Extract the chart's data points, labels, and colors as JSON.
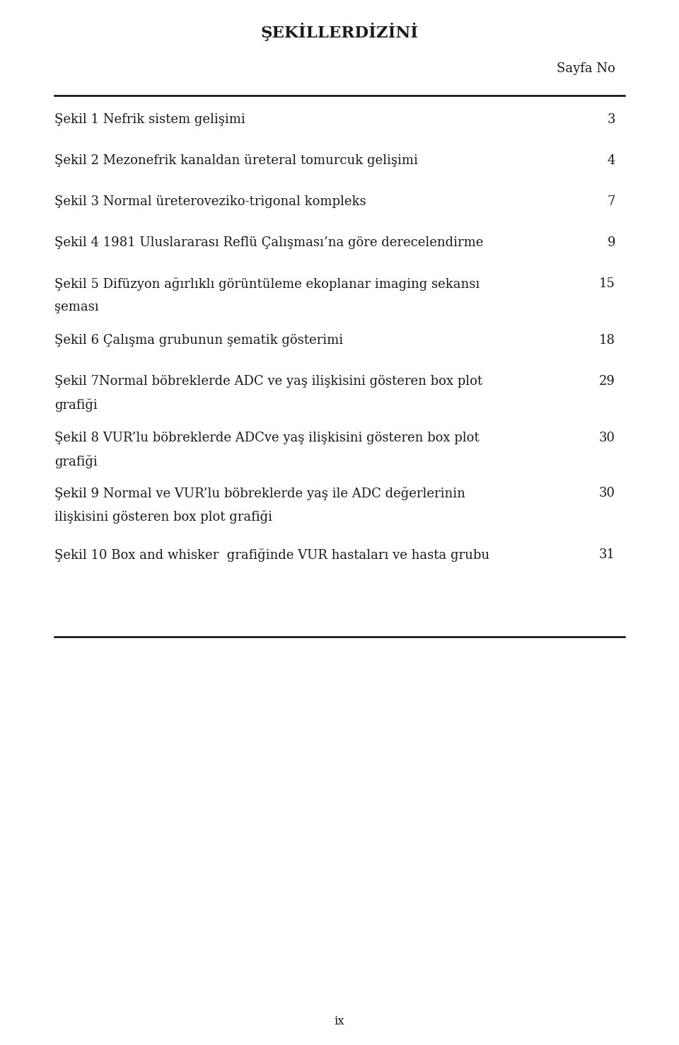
{
  "title": "ŞEKİLLERDİZİNİ",
  "header_right": "Sayfa No",
  "background_color": "#ffffff",
  "text_color": "#1a1a1a",
  "entries": [
    {
      "label": "Şekil 1 Nefrik sistem gelişimi",
      "page": "3",
      "multiline": false
    },
    {
      "label": "Şekil 2 Mezonefrik kanaldan üreteral tomurcuk gelişimi",
      "page": "4",
      "multiline": false
    },
    {
      "label": "Şekil 3 Normal üreteroveziko-trigonal kompleks",
      "page": "7",
      "multiline": false
    },
    {
      "label": "Şekil 4 1981 Uluslararası Reflü Çalışması’na göre derecelendirme",
      "page": "9",
      "multiline": false
    },
    {
      "label": "Şekil 5 Difüzyon ağırlıklı görüntüleme ekoplanar imaging sekansı",
      "page": "15",
      "multiline": true,
      "line1": "Şekil 5 Difüzyon ağırlıklı görüntüleme ekoplanar imaging sekansı",
      "line2": "şeması"
    },
    {
      "label": "Şekil 6 Çalışma grubunun şematik gösterimi",
      "page": "18",
      "multiline": false
    },
    {
      "label": "Şekil 7Normal böbreklerde ADC ve yaş ilişkisini gösteren box plot",
      "page": "29",
      "multiline": true,
      "line1": "Şekil 7Normal böbreklerde ADC ve yaş ilişkisini gösteren box plot",
      "line2": "grafiği"
    },
    {
      "label": "Şekil 8 VUR’lu böbreklerde ADCve yaş ilişkisini gösteren box plot",
      "page": "30",
      "multiline": true,
      "line1": "Şekil 8 VUR’lu böbreklerde ADCve yaş ilişkisini gösteren box plot",
      "line2": "grafiği"
    },
    {
      "label": "Şekil 9 Normal ve VUR’lu böbreklerde yaş ile ADC değerlerinin",
      "page": "30",
      "multiline": true,
      "line1": "Şekil 9 Normal ve VUR’lu böbreklerde yaş ile ADC değerlerinin",
      "line2": "ilişkisini gösteren box plot grafiği"
    },
    {
      "label": "Şekil 10 Box and whisker  grafiğinde VUR hastaları ve hasta grubu",
      "page": "31",
      "multiline": false
    }
  ],
  "font_size": 13.0,
  "title_font_size": 16.5,
  "header_font_size": 13.0,
  "footer_text": "ix",
  "font_family": "serif"
}
